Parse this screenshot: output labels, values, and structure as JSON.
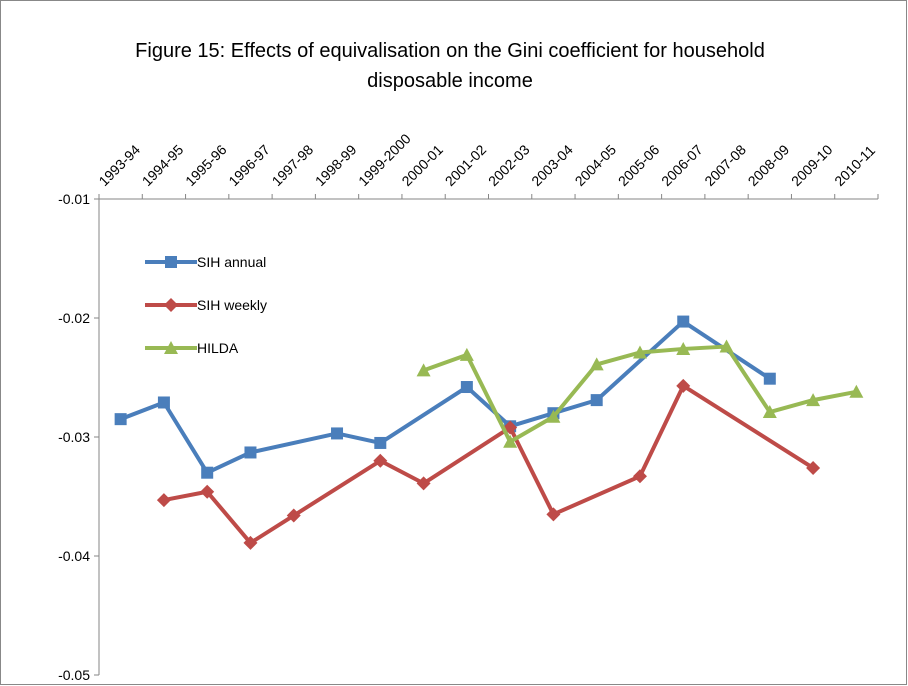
{
  "chart_data": {
    "type": "line",
    "title": "Figure 15: Effects of equivalisation on the Gini coefficient for household disposable income",
    "categories": [
      "1993-94",
      "1994-95",
      "1995-96",
      "1996-97",
      "1997-98",
      "1998-99",
      "1999-2000",
      "2000-01",
      "2001-02",
      "2002-03",
      "2003-04",
      "2004-05",
      "2005-06",
      "2006-07",
      "2007-08",
      "2008-09",
      "2009-10",
      "2010-11"
    ],
    "series": [
      {
        "name": "SIH annual",
        "color": "#4a7ebb",
        "marker": "square",
        "values": [
          -0.0285,
          -0.0271,
          -0.033,
          -0.0313,
          null,
          -0.0297,
          -0.0305,
          null,
          -0.0258,
          -0.0291,
          -0.028,
          -0.0269,
          null,
          -0.0203,
          null,
          -0.0251,
          null,
          null
        ]
      },
      {
        "name": "SIH weekly",
        "color": "#be4b48",
        "marker": "diamond",
        "values": [
          null,
          -0.0353,
          -0.0346,
          -0.0389,
          -0.0366,
          null,
          -0.032,
          -0.0339,
          null,
          -0.0292,
          -0.0365,
          null,
          -0.0333,
          -0.0257,
          null,
          null,
          -0.0326,
          null
        ]
      },
      {
        "name": "HILDA",
        "color": "#98b954",
        "marker": "triangle",
        "values": [
          null,
          null,
          null,
          null,
          null,
          null,
          null,
          -0.0244,
          -0.0231,
          -0.0304,
          -0.0283,
          -0.0239,
          -0.0229,
          -0.0226,
          -0.0224,
          -0.0279,
          -0.0269,
          -0.0262
        ]
      }
    ],
    "ylim": [
      -0.05,
      -0.01
    ],
    "yticks": [
      -0.05,
      -0.04,
      -0.03,
      -0.02,
      -0.01
    ],
    "grid": false,
    "legend": "upper left"
  }
}
